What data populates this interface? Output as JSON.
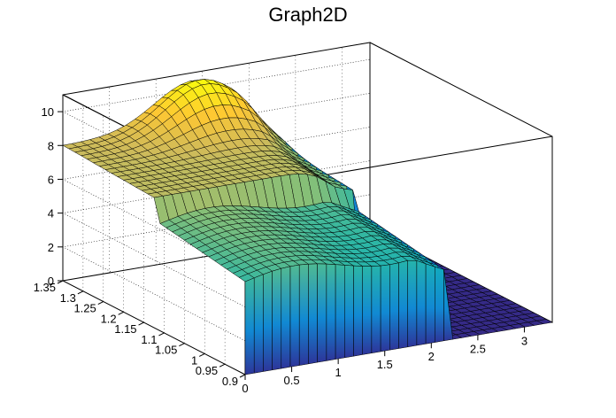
{
  "chart_data": {
    "type": "surface",
    "title": "Graph2D",
    "xlabel": "",
    "ylabel": "",
    "zlabel": "",
    "xlim": [
      0,
      3.3
    ],
    "ylim": [
      0.9,
      1.35
    ],
    "zlim": [
      0,
      11
    ],
    "x_ticks": [
      "0",
      "0.5",
      "1",
      "1.5",
      "2",
      "2.5",
      "3"
    ],
    "y_ticks": [
      "0.9",
      "0.95",
      "1",
      "1.05",
      "1.1",
      "1.15",
      "1.2",
      "1.25",
      "1.3",
      "1.35"
    ],
    "z_ticks": [
      "0",
      "2",
      "4",
      "6",
      "8",
      "10"
    ],
    "grid": true,
    "palette": [
      "#352a87",
      "#0f5cdd",
      "#1481d6",
      "#06a4ca",
      "#2eb7a4",
      "#87bf77",
      "#d1bb59",
      "#fec832",
      "#f9fb0e"
    ],
    "surface": {
      "description_levels": {
        "plateau_z": 8,
        "peak_z": 10.8,
        "peak_x": 1.4,
        "peak_y": 1.33,
        "edge_drop_x": 2.15,
        "floor_z": 0
      }
    }
  }
}
